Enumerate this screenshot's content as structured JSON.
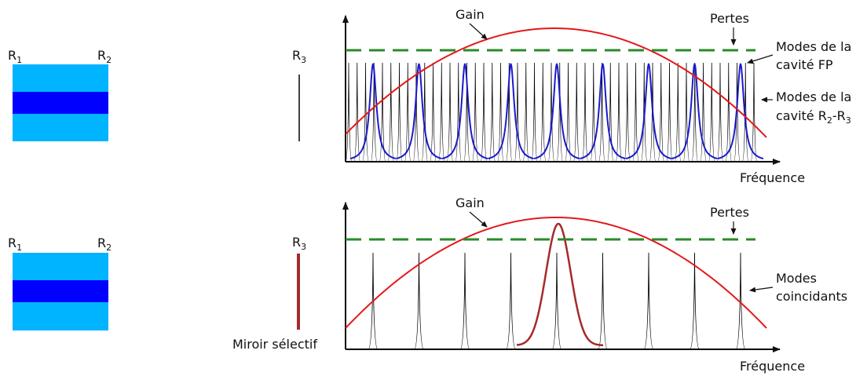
{
  "colors": {
    "gain": "#e3191b",
    "losses": "#2a8a2a",
    "fp_modes": "#1a1acc",
    "ext_modes": "#000000",
    "selective_mirror": "#a52a2a",
    "chip_outer": "#00b4ff",
    "chip_core": "#0000ff"
  },
  "top": {
    "mirror_left": {
      "base": "R",
      "sub": "1"
    },
    "mirror_right": {
      "base": "R",
      "sub": "2"
    },
    "mirror_external": {
      "base": "R",
      "sub": "3"
    },
    "gain_label": "Gain",
    "losses_label": "Pertes",
    "fp_modes_label_1": "Modes de la",
    "fp_modes_label_2": "cavité FP",
    "ext_modes_label_1": "Modes de la",
    "ext_modes_label_2a": "cavité R",
    "ext_modes_sub_a": "2",
    "ext_modes_dash": "-R",
    "ext_modes_sub_b": "3",
    "x_axis_label": "Fréquence"
  },
  "bottom": {
    "mirror_left": {
      "base": "R",
      "sub": "1"
    },
    "mirror_right": {
      "base": "R",
      "sub": "2"
    },
    "mirror_external": {
      "base": "R",
      "sub": "3"
    },
    "gain_label": "Gain",
    "losses_label": "Pertes",
    "coincident_label_1": "Modes",
    "coincident_label_2": "coincidants",
    "selective_mirror_label": "Miroir sélectif",
    "x_axis_label": "Fréquence"
  }
}
